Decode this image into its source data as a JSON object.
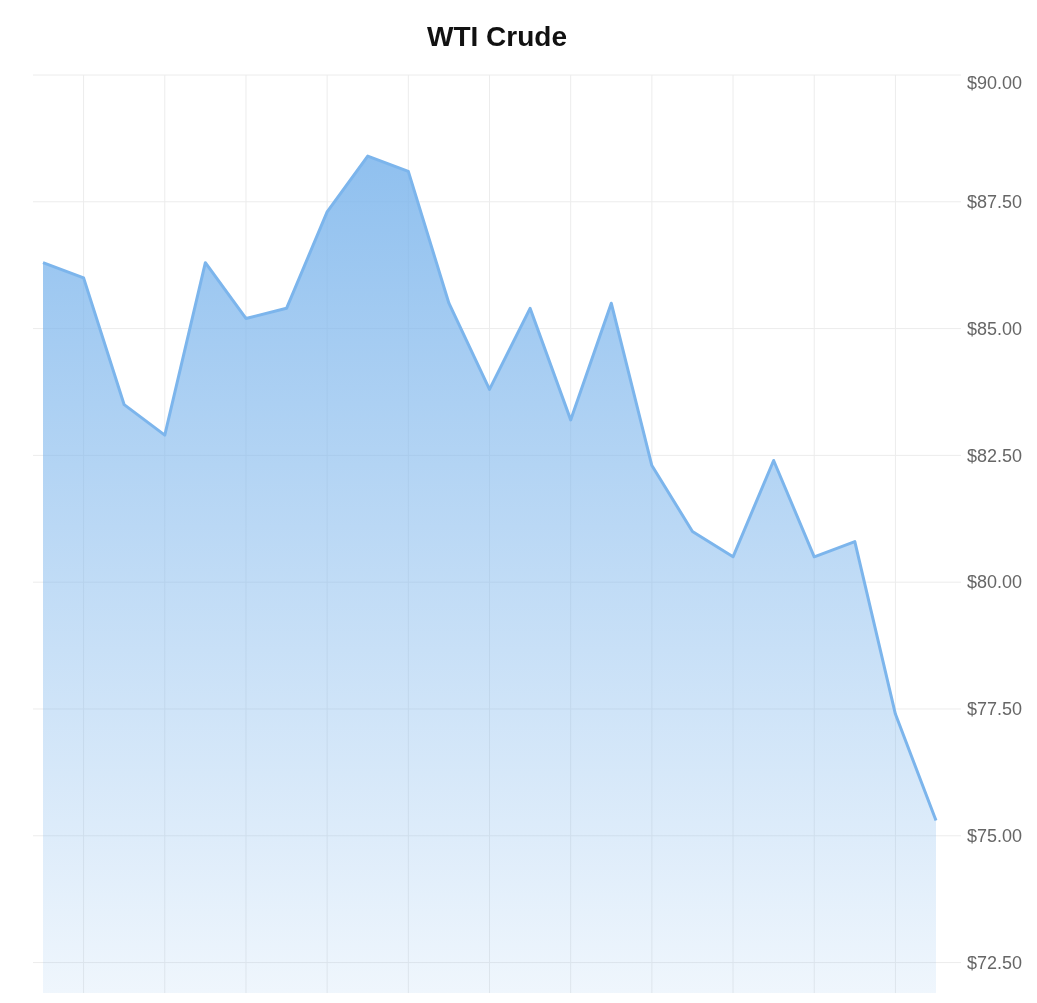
{
  "chart_data": {
    "type": "area",
    "title": "WTI Crude",
    "categories": [
      null,
      null,
      null,
      null,
      null,
      null,
      null,
      null,
      null,
      null,
      null,
      null,
      null,
      null,
      null,
      null,
      null,
      null,
      null,
      null,
      null,
      null,
      null
    ],
    "series": [
      {
        "color": "#7cb5ec",
        "values": [
          86.3,
          86.0,
          83.5,
          82.9,
          86.3,
          85.2,
          85.4,
          87.3,
          88.4,
          88.1,
          85.5,
          83.8,
          85.4,
          83.2,
          85.5,
          82.3,
          81.0,
          80.5,
          82.4,
          80.5,
          80.8,
          77.4,
          75.3
        ]
      }
    ],
    "ylim": [
      71.9,
      90
    ],
    "yticks": [
      {
        "value": 90,
        "label": "$90.00"
      },
      {
        "value": 87.5,
        "label": "$87.50"
      },
      {
        "value": 85,
        "label": "$85.00"
      },
      {
        "value": 82.5,
        "label": "$82.50"
      },
      {
        "value": 80,
        "label": "$80.00"
      },
      {
        "value": 77.5,
        "label": "$77.50"
      },
      {
        "value": 75,
        "label": "$75.00"
      },
      {
        "value": 72.5,
        "label": "$72.50"
      }
    ],
    "grid": true
  }
}
